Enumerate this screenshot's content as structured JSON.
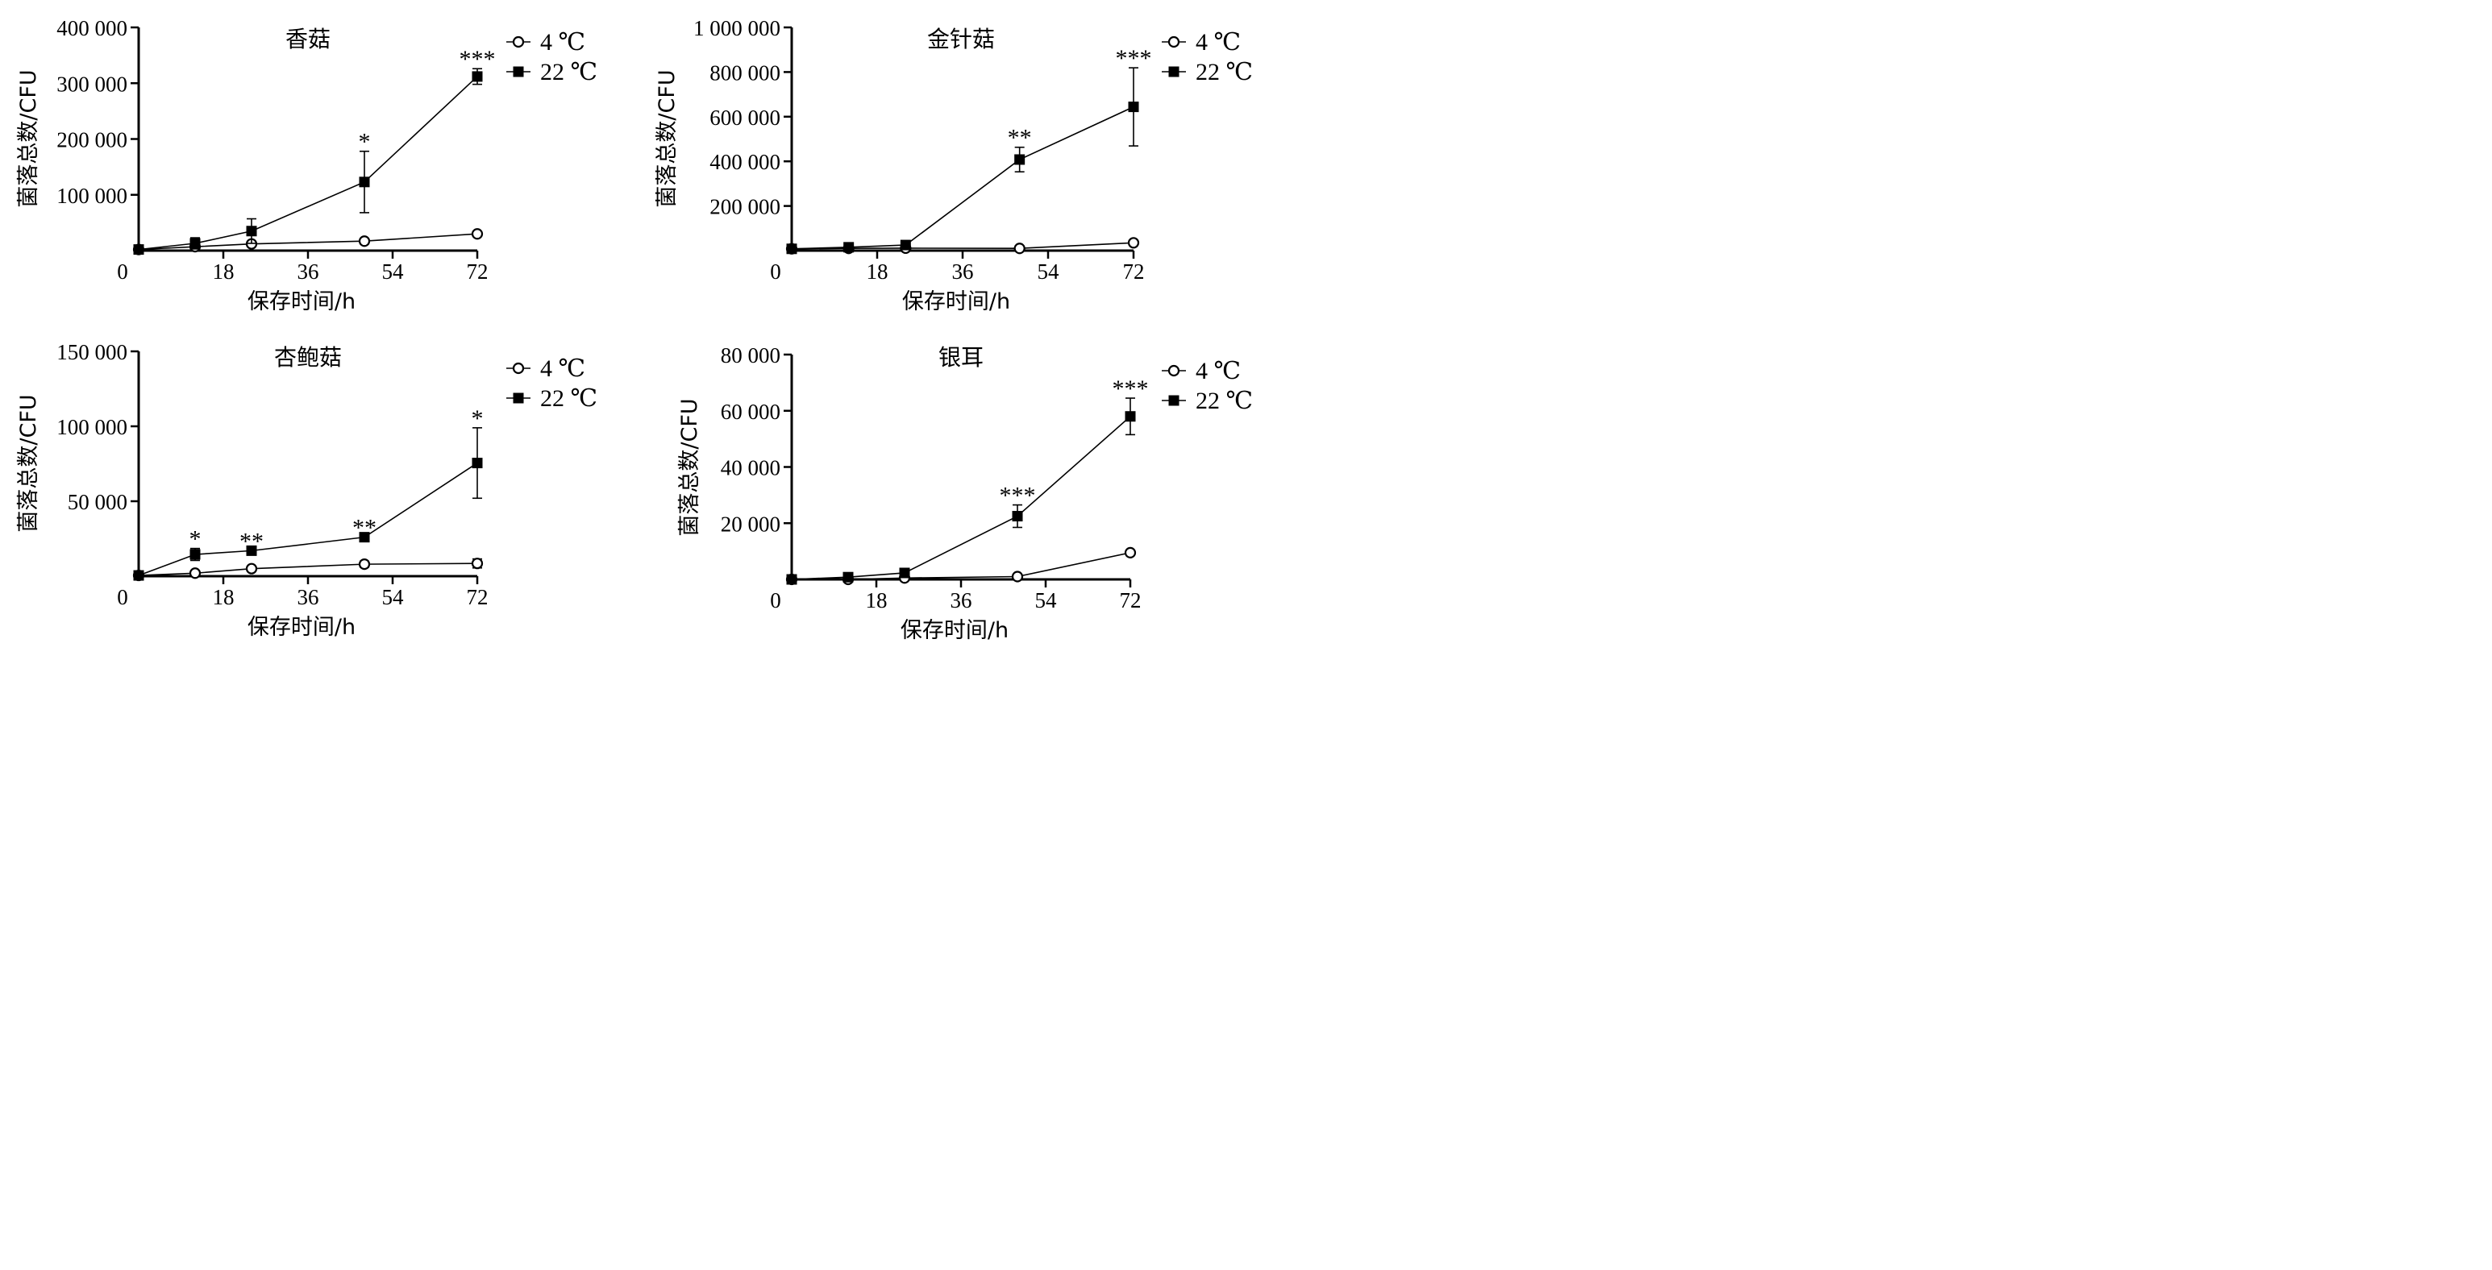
{
  "chart_data": [
    {
      "type": "line",
      "title": "香菇",
      "xlabel": "保存时间/h",
      "ylabel": "菌落总数/CFU",
      "xlim": [
        0,
        72
      ],
      "ylim": [
        0,
        400000
      ],
      "xticks": [
        0,
        18,
        36,
        54,
        72
      ],
      "xtick_labels": [
        "0",
        "18",
        "36",
        "54",
        "72"
      ],
      "yticks": [
        100000,
        200000,
        300000,
        400000
      ],
      "ytick_labels": [
        "100 000",
        "200 000",
        "300 000",
        "400 000"
      ],
      "legend_placement": "top-right",
      "series": [
        {
          "name": "4 ℃",
          "marker": "open-circle",
          "x": [
            0,
            12,
            24,
            48,
            72
          ],
          "values": [
            2000,
            7000,
            12000,
            17000,
            30000
          ],
          "err": [
            0,
            0,
            0,
            5000,
            0
          ]
        },
        {
          "name": "22 ℃",
          "marker": "filled-square",
          "x": [
            0,
            12,
            24,
            48,
            72
          ],
          "values": [
            2000,
            13000,
            35000,
            123000,
            312000
          ],
          "err": [
            0,
            10000,
            22000,
            55000,
            14000
          ]
        }
      ],
      "annotations": [
        {
          "x": 48,
          "text": "*"
        },
        {
          "x": 72,
          "text": "***"
        }
      ]
    },
    {
      "type": "line",
      "title": "金针菇",
      "xlabel": "保存时间/h",
      "ylabel": "菌落总数/CFU",
      "xlim": [
        0,
        72
      ],
      "ylim": [
        0,
        1000000
      ],
      "xticks": [
        0,
        18,
        36,
        54,
        72
      ],
      "xtick_labels": [
        "0",
        "18",
        "36",
        "54",
        "72"
      ],
      "yticks": [
        200000,
        400000,
        600000,
        800000,
        1000000
      ],
      "ytick_labels": [
        "200 000",
        "400 000",
        "600 000",
        "800 000",
        "1 000 000"
      ],
      "legend_placement": "top-right",
      "series": [
        {
          "name": "4 ℃",
          "marker": "open-circle",
          "x": [
            0,
            12,
            24,
            48,
            72
          ],
          "values": [
            8000,
            10000,
            11000,
            10000,
            35000
          ],
          "err": [
            0,
            0,
            0,
            0,
            0
          ]
        },
        {
          "name": "22 ℃",
          "marker": "filled-square",
          "x": [
            0,
            12,
            24,
            48,
            72
          ],
          "values": [
            8000,
            15000,
            25000,
            408000,
            644000
          ],
          "err": [
            0,
            0,
            0,
            55000,
            175000
          ]
        }
      ],
      "annotations": [
        {
          "x": 48,
          "text": "**"
        },
        {
          "x": 72,
          "text": "***"
        }
      ]
    },
    {
      "type": "line",
      "title": "杏鲍菇",
      "xlabel": "保存时间/h",
      "ylabel": "菌落总数/CFU",
      "xlim": [
        0,
        72
      ],
      "ylim": [
        0,
        150000
      ],
      "xticks": [
        0,
        18,
        36,
        54,
        72
      ],
      "xtick_labels": [
        "0",
        "18",
        "36",
        "54",
        "72"
      ],
      "yticks": [
        50000,
        100000,
        150000
      ],
      "ytick_labels": [
        "50 000",
        "100 000",
        "150 000"
      ],
      "legend_placement": "top-right",
      "series": [
        {
          "name": "4 ℃",
          "marker": "open-circle",
          "x": [
            0,
            12,
            24,
            48,
            72
          ],
          "values": [
            500,
            2000,
            5000,
            8000,
            8500
          ],
          "err": [
            0,
            0,
            0,
            2000,
            3000
          ]
        },
        {
          "name": "22 ℃",
          "marker": "filled-square",
          "x": [
            0,
            12,
            24,
            48,
            72
          ],
          "values": [
            500,
            14500,
            17000,
            26000,
            75500
          ],
          "err": [
            0,
            4000,
            0,
            0,
            23500
          ]
        }
      ],
      "annotations": [
        {
          "x": 12,
          "text": "*"
        },
        {
          "x": 24,
          "text": "**"
        },
        {
          "x": 48,
          "text": "**"
        },
        {
          "x": 72,
          "text": "*"
        }
      ]
    },
    {
      "type": "line",
      "title": "银耳",
      "xlabel": "保存时间/h",
      "ylabel": "菌落总数/CFU",
      "xlim": [
        0,
        72
      ],
      "ylim": [
        0,
        80000
      ],
      "xticks": [
        0,
        18,
        36,
        54,
        72
      ],
      "xtick_labels": [
        "0",
        "18",
        "36",
        "54",
        "72"
      ],
      "yticks": [
        20000,
        40000,
        60000,
        80000
      ],
      "ytick_labels": [
        "20 000",
        "40 000",
        "60 000",
        "80 000"
      ],
      "legend_placement": "top-right",
      "series": [
        {
          "name": "4 ℃",
          "marker": "open-circle",
          "x": [
            0,
            12,
            24,
            48,
            72
          ],
          "values": [
            0,
            0,
            500,
            1000,
            9500
          ],
          "err": [
            0,
            0,
            0,
            0,
            0
          ]
        },
        {
          "name": "22 ℃",
          "marker": "filled-square",
          "x": [
            0,
            12,
            24,
            48,
            72
          ],
          "values": [
            0,
            800,
            2300,
            22500,
            58000
          ],
          "err": [
            0,
            0,
            0,
            4000,
            6500
          ]
        }
      ],
      "annotations": [
        {
          "x": 48,
          "text": "***"
        },
        {
          "x": 72,
          "text": "***"
        }
      ]
    }
  ]
}
